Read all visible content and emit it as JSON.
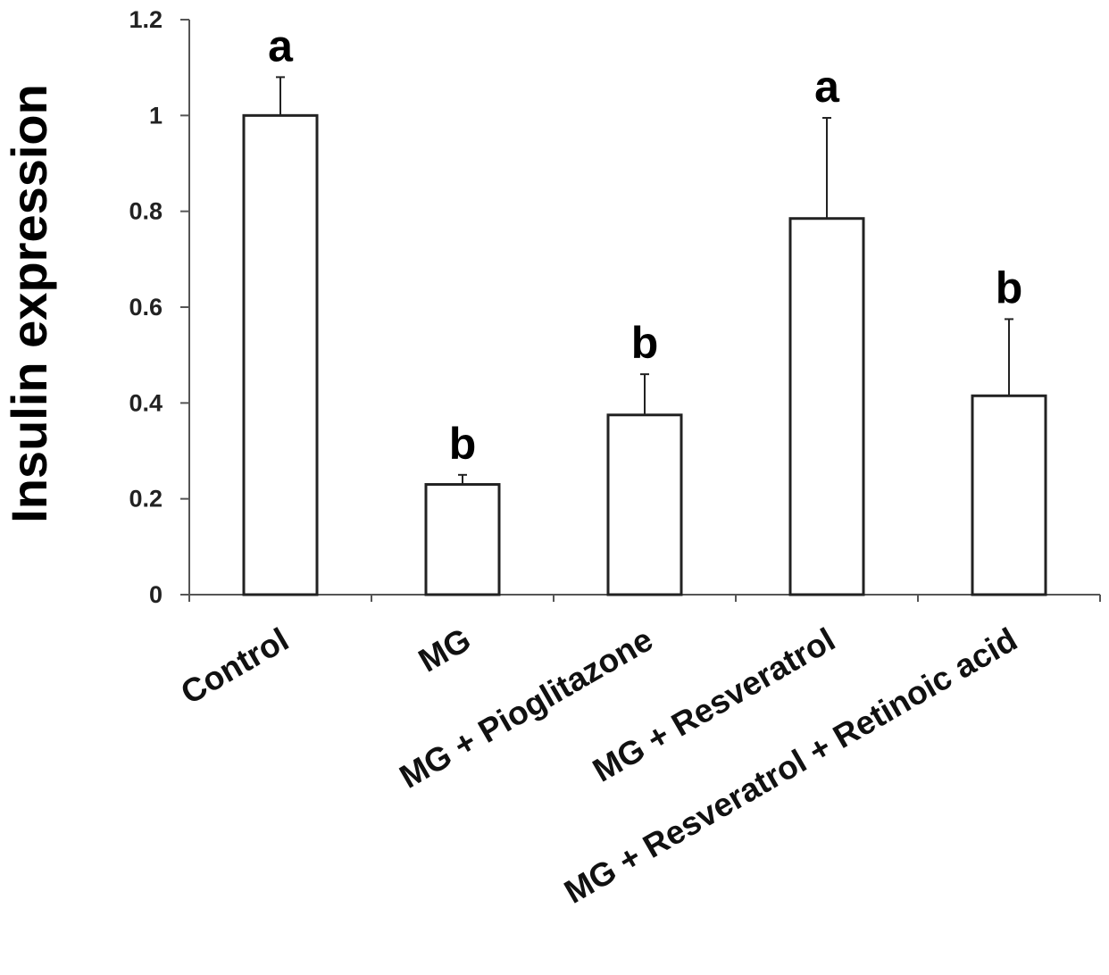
{
  "chart_data": {
    "type": "bar",
    "title": "",
    "xlabel": "",
    "ylabel": "Insulin expression",
    "ylim": [
      0,
      1.2
    ],
    "yticks": [
      "0",
      "0.2",
      "0.4",
      "0.6",
      "0.8",
      "1",
      "1.2"
    ],
    "yticks_values": [
      0,
      0.2,
      0.4,
      0.6,
      0.8,
      1.0,
      1.2
    ],
    "categories": [
      "Control",
      "MG",
      "MG + Pioglitazone",
      "MG + Resveratrol",
      "MG + Resveratrol + Retinoic acid"
    ],
    "values": [
      1.0,
      0.23,
      0.375,
      0.785,
      0.415
    ],
    "error_upper": [
      0.08,
      0.02,
      0.085,
      0.21,
      0.16
    ],
    "significance_labels": [
      "a",
      "b",
      "b",
      "a",
      "b"
    ],
    "grid": false,
    "legend": "none",
    "colors": {
      "bar_fill": "#ffffff",
      "bar_stroke": "#222222",
      "axis": "#555555"
    }
  }
}
